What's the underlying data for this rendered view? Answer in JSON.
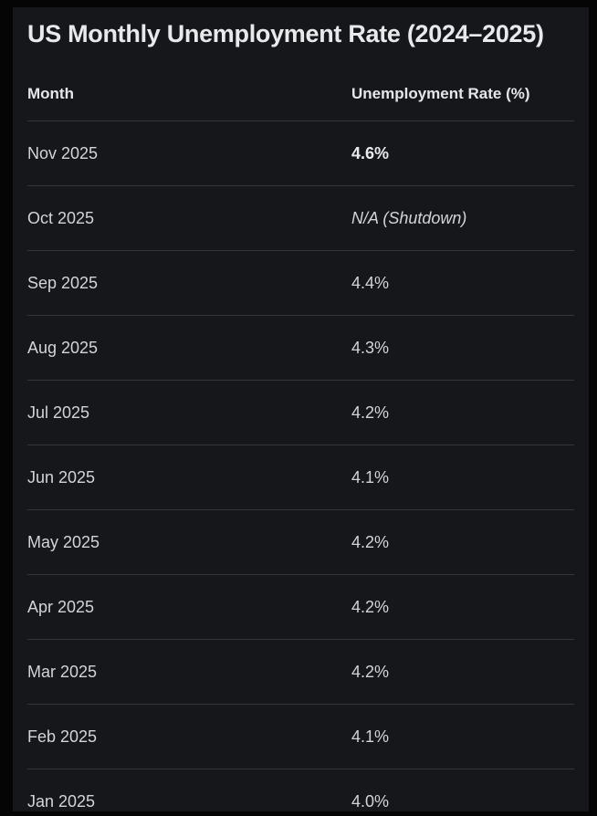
{
  "title": "US Monthly Unemployment Rate (2024–2025)",
  "colors": {
    "page_background": "#050505",
    "panel_background": "#15171b",
    "title_text": "#e8e9eb",
    "header_text": "#e4e6e9",
    "cell_text": "#d2d4d8",
    "separator": "#33363c"
  },
  "chart_data": {
    "type": "table",
    "title": "US Monthly Unemployment Rate (2024–2025)",
    "columns": [
      "Month",
      "Unemployment Rate (%)"
    ],
    "rows": [
      {
        "month": "Nov 2025",
        "rate": "4.6%",
        "emphasis": "bold"
      },
      {
        "month": "Oct 2025",
        "rate": "N/A (Shutdown)",
        "emphasis": "italic"
      },
      {
        "month": "Sep 2025",
        "rate": "4.4%",
        "emphasis": "normal"
      },
      {
        "month": "Aug 2025",
        "rate": "4.3%",
        "emphasis": "normal"
      },
      {
        "month": "Jul 2025",
        "rate": "4.2%",
        "emphasis": "normal"
      },
      {
        "month": "Jun 2025",
        "rate": "4.1%",
        "emphasis": "normal"
      },
      {
        "month": "May 2025",
        "rate": "4.2%",
        "emphasis": "normal"
      },
      {
        "month": "Apr 2025",
        "rate": "4.2%",
        "emphasis": "normal"
      },
      {
        "month": "Mar 2025",
        "rate": "4.2%",
        "emphasis": "normal"
      },
      {
        "month": "Feb 2025",
        "rate": "4.1%",
        "emphasis": "normal"
      },
      {
        "month": "Jan 2025",
        "rate": "4.0%",
        "emphasis": "normal"
      }
    ]
  }
}
